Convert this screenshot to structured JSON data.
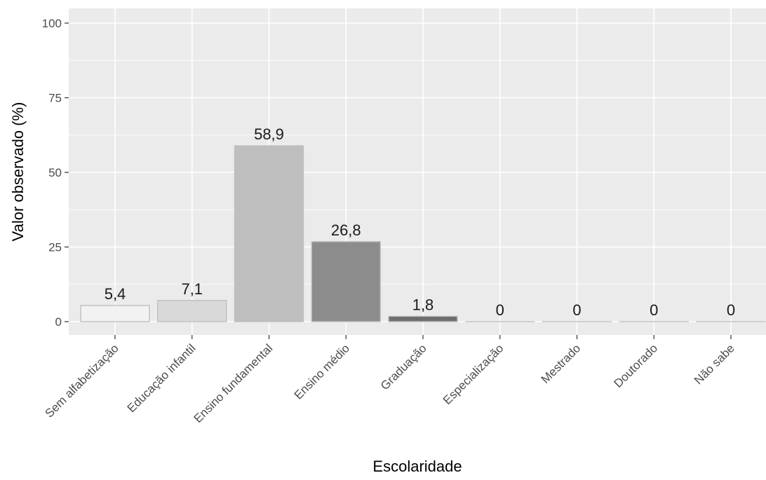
{
  "chart_data": {
    "type": "bar",
    "title": "",
    "xlabel": "Escolaridade",
    "ylabel": "Valor observado (%)",
    "ylim": [
      0,
      100
    ],
    "yticks": [
      0,
      25,
      50,
      75,
      100
    ],
    "grid": true,
    "categories": [
      "Sem alfabetização",
      "Educação infantil",
      "Ensino fundamental",
      "Ensino médio",
      "Graduação",
      "Especialização",
      "Mestrado",
      "Doutorado",
      "Não sabe"
    ],
    "values": [
      5.4,
      7.1,
      58.9,
      26.8,
      1.8,
      0,
      0,
      0,
      0
    ],
    "value_labels": [
      "5,4",
      "7,1",
      "58,9",
      "26,8",
      "1,8",
      "0",
      "0",
      "0",
      "0"
    ],
    "bar_colors": [
      "#f2f2f2",
      "#d9d9d9",
      "#bebebe",
      "#8c8c8c",
      "#6e6e6e",
      "#b3b3b3",
      "#b3b3b3",
      "#b3b3b3",
      "#b3b3b3"
    ],
    "panel_color": "#ebebeb",
    "grid_color": "#ffffff"
  }
}
